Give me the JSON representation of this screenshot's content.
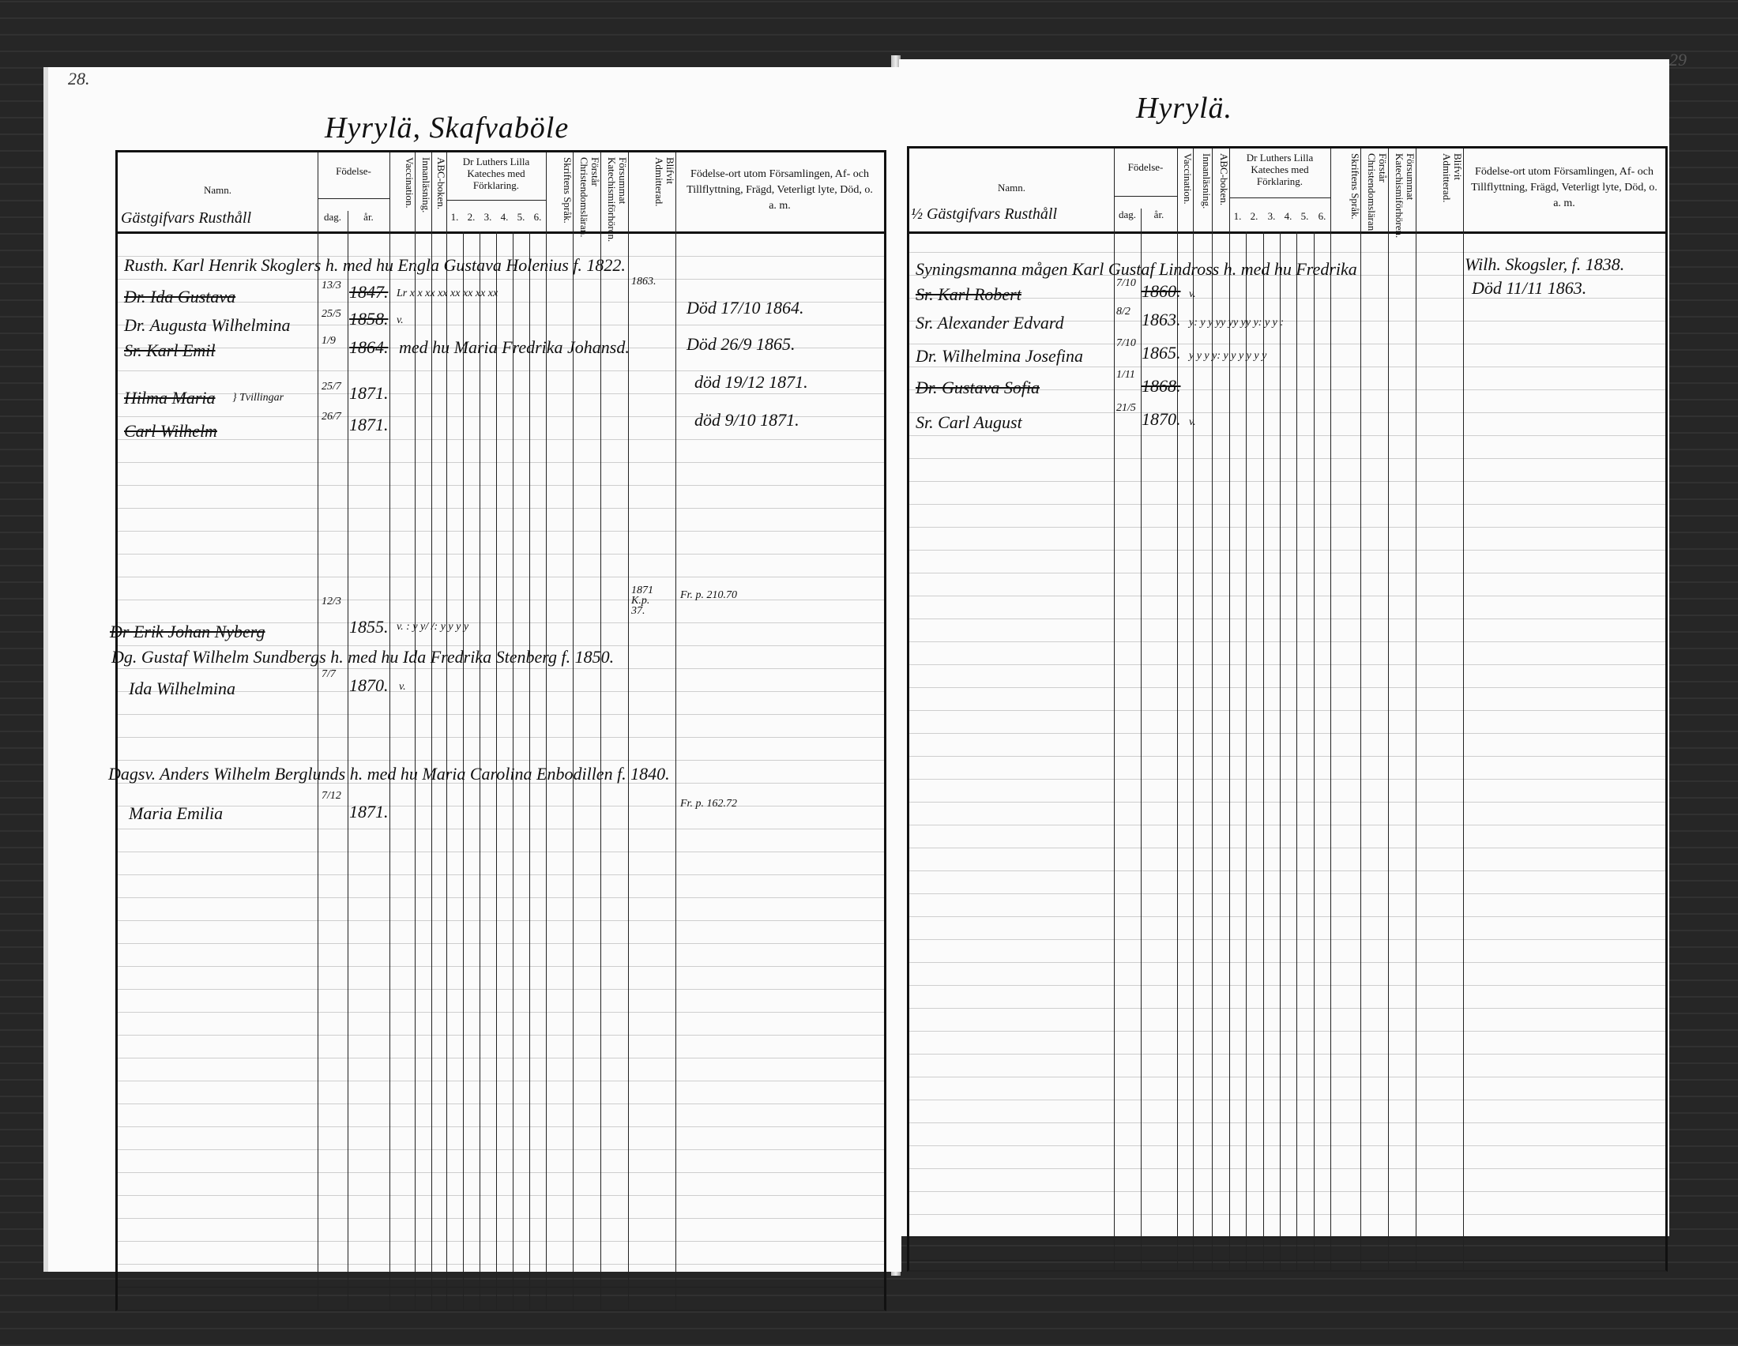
{
  "headers": {
    "namn": "Namn.",
    "fodelse": "Födelse-",
    "dag": "dag.",
    "ar": "år.",
    "vaccination": "Vaccination.",
    "innanlasning": "Innanläsning.",
    "abc": "ABC-boken.",
    "luther": "Dr Luthers Lilla Kateches med Förklaring.",
    "luther_cols": [
      "1.",
      "2.",
      "3.",
      "4.",
      "5.",
      "6."
    ],
    "skriftens": "Skriftens Språk.",
    "forstar": "Förstår Christendomsläran.",
    "forsummat": "Försummat Katechismiförhören.",
    "blifvit": "Blifvit Admitterad.",
    "anm": "Födelse-ort utom Församlingen, Af- och Tillflyttning, Frägd, Veterligt lyte, Död, o. a. m."
  },
  "left_page": {
    "page_number": "28.",
    "title": "Hyrylä, Skafvaböle",
    "household": "Gästgifvars Rusthåll",
    "entries": [
      {
        "line": "Rusth. Karl Henrik Skoglers h. med hu Engla Gustava Holenius f. 1822.",
        "admitted": "1863."
      },
      {
        "name": "Dr. Ida Gustava",
        "dag": "13/3",
        "ar": "1847.",
        "marks": "Lr  x  x  xx xx xx xx xx xx"
      },
      {
        "name": "Dr. Augusta Wilhelmina",
        "dag": "25/5",
        "ar": "1858.",
        "marks": "v.",
        "remark": "Död 17/10 1864."
      },
      {
        "name": "Sr. Karl Emil",
        "dag": "1/9",
        "ar": "1864.",
        "annotation": "med hu Maria Fredrika Johansd.",
        "remark": "Död 26/9 1865."
      },
      {
        "name": "Hilma Maria",
        "bracket": "} Tvillingar",
        "dag": "25/7",
        "ar": "1871.",
        "remark": "död 19/12 1871."
      },
      {
        "name": "Carl Wilhelm",
        "dag": "26/7",
        "ar": "1871.",
        "remark": "död 9/10 1871."
      },
      {
        "name": "Dr Erik Johan Nyberg",
        "dag": "12/3",
        "ar": "1855.",
        "marks": "v.  :  y  y/  /:  y  y  y  y",
        "admitted": "1871 K.p. 37.",
        "remark": "Fr. p. 210.70"
      },
      {
        "line": "Dg. Gustaf Wilhelm Sundbergs h. med hu Ida Fredrika Stenberg f. 1850."
      },
      {
        "name": "Ida Wilhelmina",
        "dag": "7/7",
        "ar": "1870.",
        "marks": "v."
      },
      {
        "line": "Dagsv. Anders Wilhelm Berglunds h. med hu Maria Carolina Enbodillen f. 1840.",
        "remark": "Fr. p. 162.72"
      },
      {
        "name": "Maria Emilia",
        "dag": "7/12",
        "ar": "1871."
      }
    ]
  },
  "right_page": {
    "page_number": "29",
    "title": "Hyrylä.",
    "household": "½ Gästgifvars Rusthåll",
    "entries": [
      {
        "line": "Syningsmanna mågen Karl Gustaf Lindross h. med hu Fredrika",
        "remark": "Wilh. Skogsler, f. 1838."
      },
      {
        "name": "Sr. Karl Robert",
        "dag": "7/10",
        "ar": "1860.",
        "marks": "v.",
        "remark": "Död 11/11 1863."
      },
      {
        "name": "Sr. Alexander Edvard",
        "dag": "8/2",
        "ar": "1863.",
        "marks": "y:  y  y  yy  yy  yy  y:  y  y  :"
      },
      {
        "name": "Dr. Wilhelmina Josefina",
        "dag": "7/10",
        "ar": "1865.",
        "marks": "y  y  y  y:  y  y  y  y  y  y"
      },
      {
        "name": "Dr. Gustava Sofia",
        "dag": "1/11",
        "ar": "1868."
      },
      {
        "name": "Sr. Carl August",
        "dag": "21/5",
        "ar": "1870.",
        "marks": "v."
      }
    ]
  }
}
